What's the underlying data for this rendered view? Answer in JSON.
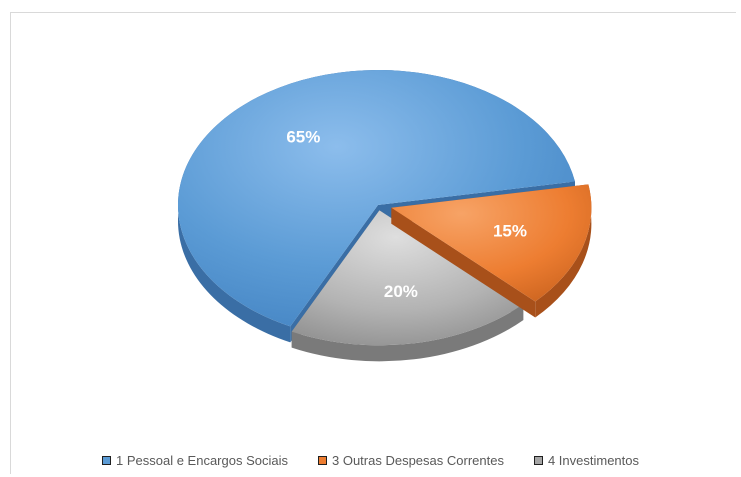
{
  "chart_data": {
    "type": "pie",
    "title": "",
    "categories": [
      "1 Pessoal e Encargos Sociais",
      "3 Outras Despesas Correntes",
      "4 Investimentos"
    ],
    "values": [
      65,
      15,
      20
    ],
    "data_labels": [
      "65%",
      "15%",
      "20%"
    ],
    "colors": [
      "#5b9bd5",
      "#ed7d31",
      "#a5a5a5"
    ],
    "style": "3d-exploded",
    "legend_position": "bottom"
  },
  "legend": {
    "items": [
      {
        "label": "1 Pessoal e Encargos Sociais",
        "color": "#5b9bd5"
      },
      {
        "label": "3 Outras Despesas Correntes",
        "color": "#ed7d31"
      },
      {
        "label": "4 Investimentos",
        "color": "#a5a5a5"
      }
    ]
  }
}
